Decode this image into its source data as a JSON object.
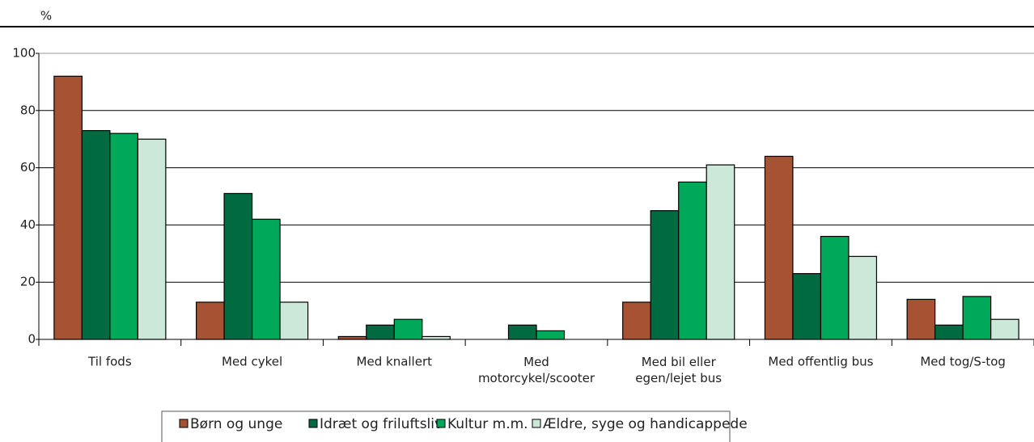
{
  "chart_data": {
    "type": "bar",
    "y_label": "%",
    "categories": [
      "Til fods",
      "Med cykel",
      "Med knallert",
      "Med motorcykel/scooter",
      "Med bil eller egen/lejet bus",
      "Med offentlig bus",
      "Med tog/S-tog"
    ],
    "series": [
      {
        "name": "Børn og unge",
        "color": "#a65233",
        "values": [
          92,
          13,
          1,
          0,
          13,
          64,
          14
        ]
      },
      {
        "name": "Idræt og friluftsliv",
        "color": "#006b41",
        "values": [
          73,
          51,
          5,
          5,
          45,
          23,
          5
        ]
      },
      {
        "name": "Kultur m.m.",
        "color": "#00a859",
        "values": [
          72,
          42,
          7,
          3,
          55,
          36,
          15
        ]
      },
      {
        "name": "Ældre, syge og handicappede",
        "color": "#cce8d8",
        "values": [
          70,
          13,
          1,
          0,
          61,
          29,
          7
        ]
      }
    ],
    "ylim": [
      0,
      100
    ],
    "yticks": [
      0,
      20,
      40,
      60,
      80,
      100
    ],
    "grid": true
  }
}
